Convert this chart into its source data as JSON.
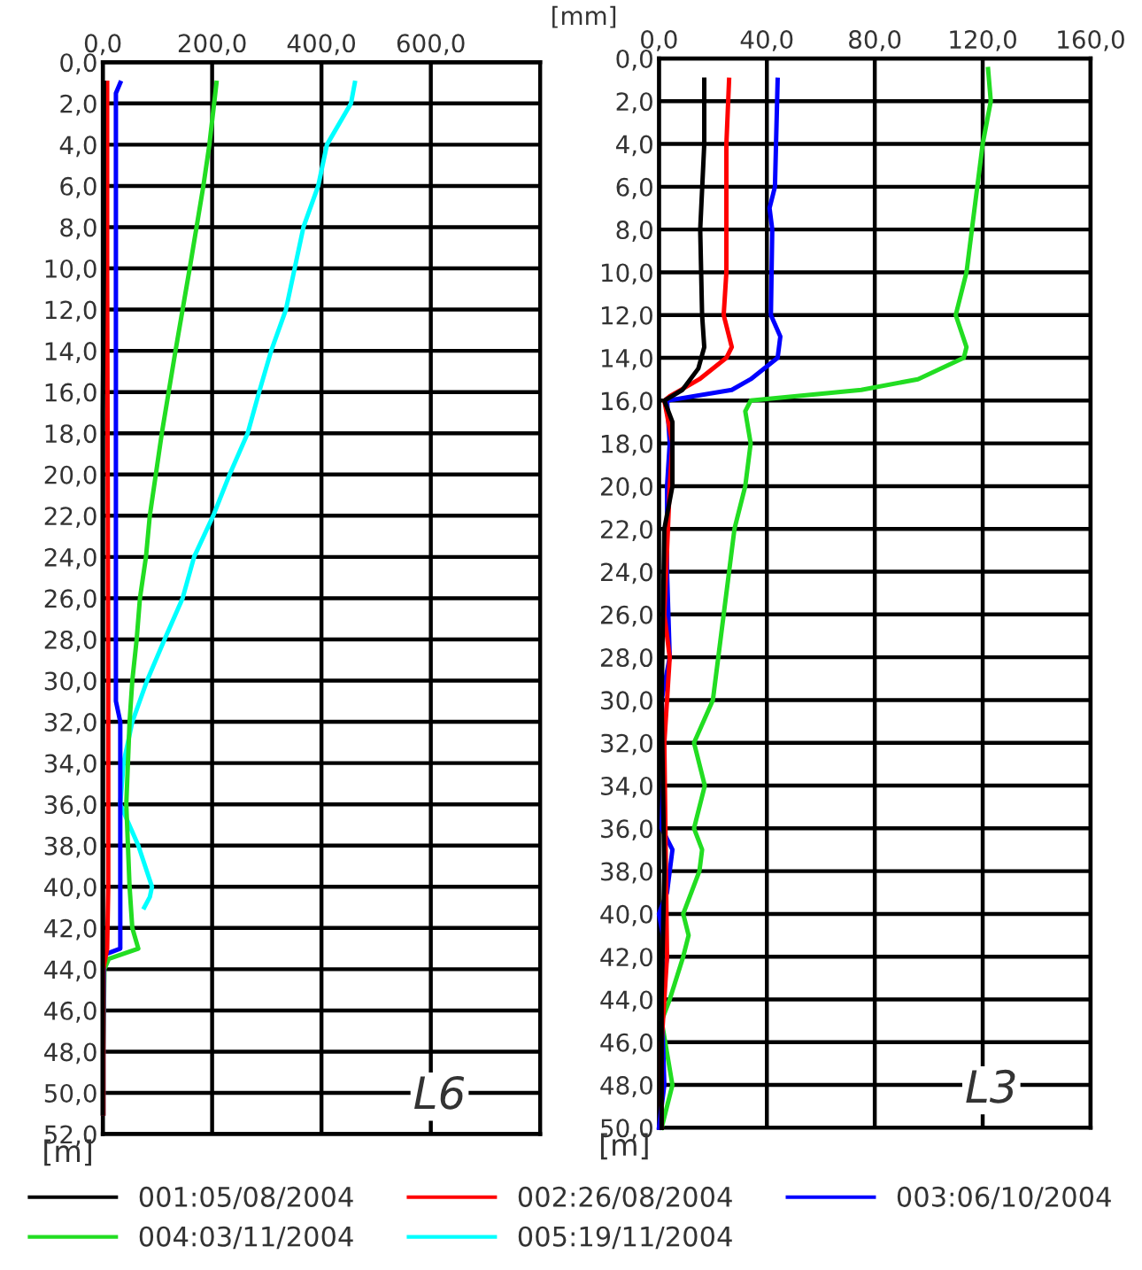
{
  "chart_data": [
    {
      "type": "line",
      "xlabel": "[mm]",
      "ylabel": "[m]",
      "annotations": [
        "L6"
      ],
      "legend": "bottom",
      "grid": true,
      "xlim": [
        0,
        800
      ],
      "xticks": [
        {
          "value": 0,
          "label": "0,0"
        },
        {
          "value": 200,
          "label": "200,0"
        },
        {
          "value": 400,
          "label": "400,0"
        },
        {
          "value": 600,
          "label": "600,0"
        }
      ],
      "ylim": [
        52,
        0
      ],
      "yticks": [
        {
          "value": 0,
          "label": "0,0"
        },
        {
          "value": 2,
          "label": "2,0"
        },
        {
          "value": 4,
          "label": "4,0"
        },
        {
          "value": 6,
          "label": "6,0"
        },
        {
          "value": 8,
          "label": "8,0"
        },
        {
          "value": 10,
          "label": "10,0"
        },
        {
          "value": 12,
          "label": "12,0"
        },
        {
          "value": 14,
          "label": "14,0"
        },
        {
          "value": 16,
          "label": "16,0"
        },
        {
          "value": 18,
          "label": "18,0"
        },
        {
          "value": 20,
          "label": "20,0"
        },
        {
          "value": 22,
          "label": "22,0"
        },
        {
          "value": 24,
          "label": "24,0"
        },
        {
          "value": 26,
          "label": "26,0"
        },
        {
          "value": 28,
          "label": "28,0"
        },
        {
          "value": 30,
          "label": "30,0"
        },
        {
          "value": 32,
          "label": "32,0"
        },
        {
          "value": 34,
          "label": "34,0"
        },
        {
          "value": 36,
          "label": "36,0"
        },
        {
          "value": 38,
          "label": "38,0"
        },
        {
          "value": 40,
          "label": "40,0"
        },
        {
          "value": 42,
          "label": "42,0"
        },
        {
          "value": 44,
          "label": "44,0"
        },
        {
          "value": 46,
          "label": "46,0"
        },
        {
          "value": 48,
          "label": "48,0"
        },
        {
          "value": 50,
          "label": "50,0"
        },
        {
          "value": 52,
          "label": "52,0"
        }
      ],
      "series": [
        {
          "name": "001:05/08/2004",
          "color": "#000000",
          "x": [
            2,
            2,
            0,
            0,
            0,
            0,
            0,
            0,
            0
          ],
          "values": [
            1,
            10,
            17,
            18,
            36,
            40,
            43,
            44,
            51
          ]
        },
        {
          "name": "002:26/08/2004",
          "color": "#ff0000",
          "x": [
            8,
            8,
            9,
            10,
            10,
            8,
            1,
            1
          ],
          "values": [
            1,
            10,
            20,
            30,
            40,
            43,
            44,
            51
          ]
        },
        {
          "name": "003:06/10/2004",
          "color": "#0000ff",
          "x": [
            32,
            24,
            24,
            24,
            32,
            32,
            2,
            1,
            1
          ],
          "values": [
            1,
            1.5,
            10,
            31,
            32,
            43,
            43.3,
            48,
            51
          ]
        },
        {
          "name": "004:03/11/2004",
          "color": "#22dd22",
          "x": [
            208,
            195,
            184,
            159,
            133,
            108,
            86,
            79,
            68,
            62,
            54,
            49,
            46,
            43,
            46,
            49,
            54,
            65,
            11,
            3,
            1,
            1
          ],
          "values": [
            1,
            4,
            6,
            10,
            14,
            18,
            22,
            24,
            26,
            28,
            30,
            32,
            34,
            36,
            38,
            40,
            42,
            43,
            43.5,
            44,
            48,
            51
          ]
        },
        {
          "name": "005:19/11/2004",
          "color": "#00ffff",
          "x": [
            461,
            454,
            410,
            394,
            367,
            351,
            335,
            308,
            286,
            265,
            232,
            202,
            167,
            146,
            113,
            81,
            54,
            38,
            32,
            65,
            90,
            86,
            76
          ],
          "values": [
            1,
            2,
            4,
            6,
            8,
            10,
            12,
            14,
            16,
            18,
            20,
            22,
            24,
            26,
            28,
            30,
            32,
            34,
            36,
            38,
            40,
            40.5,
            41
          ]
        }
      ]
    },
    {
      "type": "line",
      "ylabel": "[m]",
      "annotations": [
        "L3"
      ],
      "grid": true,
      "xlim": [
        0,
        160
      ],
      "xticks": [
        {
          "value": 0,
          "label": "0,0"
        },
        {
          "value": 40,
          "label": "40,0"
        },
        {
          "value": 80,
          "label": "80,0"
        },
        {
          "value": 120,
          "label": "120,0"
        },
        {
          "value": 160,
          "label": "160,0"
        }
      ],
      "ylim": [
        50,
        0
      ],
      "yticks": [
        {
          "value": 0,
          "label": "0,0"
        },
        {
          "value": 2,
          "label": "2,0"
        },
        {
          "value": 4,
          "label": "4,0"
        },
        {
          "value": 6,
          "label": "6,0"
        },
        {
          "value": 8,
          "label": "8,0"
        },
        {
          "value": 10,
          "label": "10,0"
        },
        {
          "value": 12,
          "label": "12,0"
        },
        {
          "value": 14,
          "label": "14,0"
        },
        {
          "value": 16,
          "label": "16,0"
        },
        {
          "value": 18,
          "label": "18,0"
        },
        {
          "value": 20,
          "label": "20,0"
        },
        {
          "value": 22,
          "label": "22,0"
        },
        {
          "value": 24,
          "label": "24,0"
        },
        {
          "value": 26,
          "label": "26,0"
        },
        {
          "value": 28,
          "label": "28,0"
        },
        {
          "value": 30,
          "label": "30,0"
        },
        {
          "value": 32,
          "label": "32,0"
        },
        {
          "value": 34,
          "label": "34,0"
        },
        {
          "value": 36,
          "label": "36,0"
        },
        {
          "value": 38,
          "label": "38,0"
        },
        {
          "value": 40,
          "label": "40,0"
        },
        {
          "value": 42,
          "label": "42,0"
        },
        {
          "value": 44,
          "label": "44,0"
        },
        {
          "value": 46,
          "label": "46,0"
        },
        {
          "value": 48,
          "label": "48,0"
        },
        {
          "value": 50,
          "label": "50,0"
        }
      ],
      "series": [
        {
          "color": "#000000",
          "x": [
            16.8,
            16.8,
            15.3,
            16,
            16.8,
            14.6,
            8.7,
            2,
            5,
            5,
            2,
            1,
            2,
            1,
            1
          ],
          "values": [
            1,
            4,
            8,
            12,
            13.5,
            14.5,
            15.5,
            16,
            17,
            20,
            22,
            30,
            38,
            44,
            50
          ]
        },
        {
          "color": "#ff0000",
          "x": [
            26,
            25,
            25,
            24,
            27,
            25,
            15,
            4,
            2,
            5,
            4,
            2,
            4,
            2,
            3,
            1,
            1
          ],
          "values": [
            1,
            4,
            10,
            12,
            13.5,
            14,
            15,
            15.8,
            16,
            18,
            20,
            26,
            28,
            32,
            42,
            46,
            50
          ]
        },
        {
          "color": "#0000ff",
          "x": [
            44,
            43,
            41,
            42,
            41.5,
            45,
            44,
            34,
            27,
            3,
            4,
            3,
            3,
            3,
            4,
            1,
            2,
            1,
            5,
            3,
            0,
            3,
            1,
            2,
            0
          ],
          "values": [
            1,
            6,
            7,
            8,
            12,
            13,
            14,
            15,
            15.5,
            16,
            18,
            20,
            22,
            24,
            28,
            30,
            32,
            36,
            37,
            39,
            40,
            42,
            44,
            48,
            50
          ]
        },
        {
          "color": "#22dd22",
          "x": [
            122,
            123,
            120,
            118,
            116,
            114,
            110,
            114,
            113,
            96,
            75,
            34,
            32,
            34,
            32,
            28,
            26,
            24,
            22,
            20,
            13,
            17,
            13,
            16,
            15,
            9,
            11,
            9,
            4,
            1,
            5,
            1
          ],
          "values": [
            0.5,
            2,
            4,
            6,
            8,
            10,
            12,
            13.5,
            14,
            15,
            15.5,
            16,
            16.5,
            18,
            20,
            22,
            24,
            26,
            28,
            30,
            32,
            34,
            36,
            37,
            38,
            40,
            41,
            42,
            44,
            45,
            48,
            50
          ]
        }
      ]
    }
  ]
}
